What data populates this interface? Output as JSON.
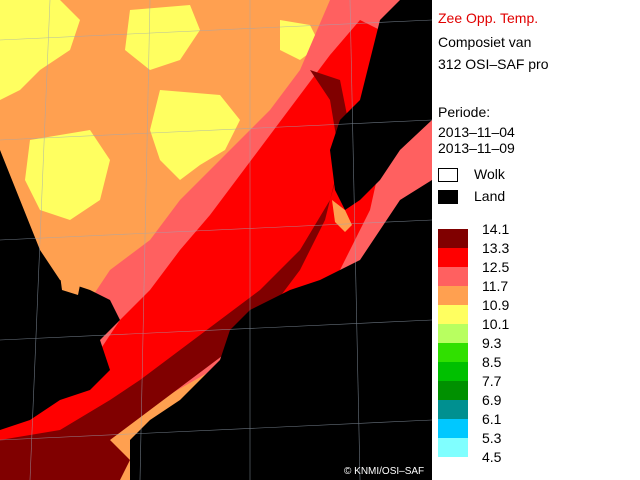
{
  "legend": {
    "title": "Zee Opp. Temp.",
    "line2": "Composiet van",
    "line3": "312 OSI–SAF pro",
    "period_label": "Periode:",
    "date_start": "2013–11–04",
    "date_end": "2013–11–09",
    "cloud_label": "Wolk",
    "land_label": "Land",
    "cloud_color": "#ffffff",
    "land_color": "#000000",
    "scale": [
      {
        "value": "14.1",
        "color": "#800000"
      },
      {
        "value": "13.3",
        "color": "#ff0000"
      },
      {
        "value": "12.5",
        "color": "#ff6060"
      },
      {
        "value": "11.7",
        "color": "#ffa050"
      },
      {
        "value": "10.9",
        "color": "#ffff60"
      },
      {
        "value": "10.1",
        "color": "#b8ff60"
      },
      {
        "value": "9.3",
        "color": "#30e000"
      },
      {
        "value": "8.5",
        "color": "#00c000"
      },
      {
        "value": "7.7",
        "color": "#009000"
      },
      {
        "value": "6.9",
        "color": "#009090"
      },
      {
        "value": "6.1",
        "color": "#00c8ff"
      },
      {
        "value": "5.3",
        "color": "#80ffff"
      },
      {
        "value": "4.5",
        "color": ""
      }
    ]
  },
  "map": {
    "credit": "© KNMI/OSI–SAF",
    "colors": {
      "far": "#ffa050",
      "patch": "#ffff60",
      "mid": "#ff6060",
      "warm": "#ff0000",
      "hot": "#800000",
      "land": "#000000"
    }
  }
}
